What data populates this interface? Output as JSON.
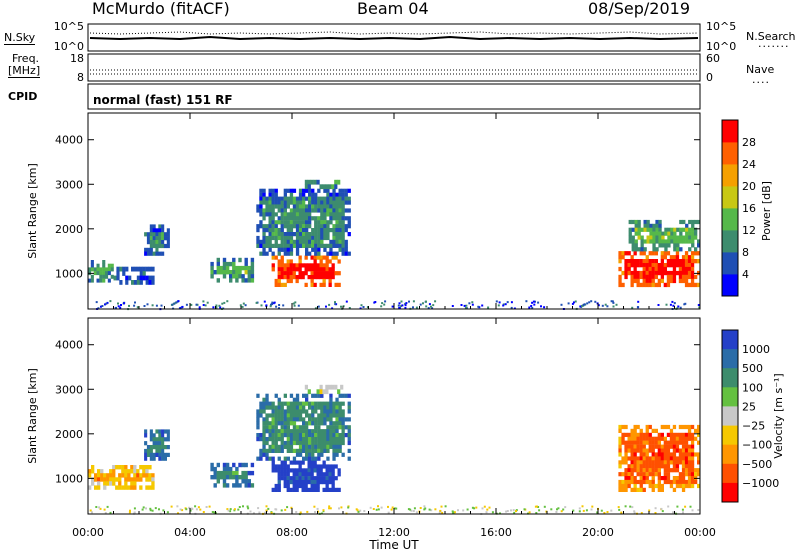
{
  "header": {
    "station": "McMurdo (fitACF)",
    "beam": "Beam 04",
    "date": "08/Sep/2019"
  },
  "noise_panel": {
    "left_label": "N.Sky",
    "right_label": "N.Search",
    "left_ticks": [
      "10^5",
      "10^0"
    ],
    "right_ticks": [
      "10^5",
      "10^0"
    ]
  },
  "freq_panel": {
    "left_label_line1": "Freq.",
    "left_label_line2": "[MHz]",
    "right_label": "Nave",
    "left_ticks": [
      "18",
      "8"
    ],
    "right_ticks": [
      "60",
      "0"
    ]
  },
  "cpid_panel": {
    "label": "CPID",
    "text": "normal (fast) 151 RF"
  },
  "chart_data": [
    {
      "type": "heatmap",
      "name": "power",
      "ylabel": "Slant Range [km]",
      "yticks": [
        "1000",
        "2000",
        "3000",
        "4000"
      ],
      "ylim": [
        200,
        4600
      ],
      "colorbar_label": "Power [dB]",
      "colorbar_ticks": [
        "4",
        "8",
        "12",
        "16",
        "20",
        "24",
        "28"
      ],
      "colors": [
        "#0000ff",
        "#1f4fb4",
        "#3d8c6e",
        "#55b84a",
        "#c8c814",
        "#f5a000",
        "#ff6000",
        "#ff0000"
      ],
      "regions": [
        {
          "t0": 0.0,
          "t1": 1.0,
          "r0": 800,
          "r1": 1300,
          "level": 3
        },
        {
          "t0": 1.0,
          "t1": 2.6,
          "r0": 750,
          "r1": 1150,
          "level": 2
        },
        {
          "t0": 2.2,
          "t1": 3.2,
          "r0": 1400,
          "r1": 2100,
          "level": 2
        },
        {
          "t0": 4.8,
          "t1": 6.5,
          "r0": 800,
          "r1": 1350,
          "level": 3
        },
        {
          "t0": 7.2,
          "t1": 9.9,
          "r0": 700,
          "r1": 1400,
          "level": 7
        },
        {
          "t0": 6.6,
          "t1": 10.3,
          "r0": 1400,
          "r1": 2900,
          "level": 2
        },
        {
          "t0": 8.5,
          "t1": 10.0,
          "r0": 2900,
          "r1": 3100,
          "level": 3
        },
        {
          "t0": 20.8,
          "t1": 24.0,
          "r0": 700,
          "r1": 1500,
          "level": 7
        },
        {
          "t0": 21.2,
          "t1": 24.0,
          "r0": 1500,
          "r1": 2200,
          "level": 3
        }
      ]
    },
    {
      "type": "heatmap",
      "name": "velocity",
      "ylabel": "Slant Range [km]",
      "yticks": [
        "1000",
        "2000",
        "3000",
        "4000"
      ],
      "ylim": [
        200,
        4600
      ],
      "xlabel": "Time UT",
      "xticks": [
        "00:00",
        "04:00",
        "08:00",
        "12:00",
        "16:00",
        "20:00",
        "00:00"
      ],
      "xlim": [
        0,
        24
      ],
      "colorbar_label": "Velocity [m s⁻¹]",
      "colorbar_ticks": [
        "1000",
        "500",
        "100",
        "25",
        "−25",
        "−100",
        "−500",
        "−1000"
      ],
      "colors": [
        "#2440c8",
        "#2a6ca8",
        "#3c8c6c",
        "#64c040",
        "#c8c8c8",
        "#f5c800",
        "#ff9600",
        "#ff5000",
        "#ff0000"
      ],
      "regions": [
        {
          "t0": 0.0,
          "t1": 2.6,
          "r0": 750,
          "r1": 1300,
          "level": 6
        },
        {
          "t0": 2.2,
          "t1": 3.2,
          "r0": 1400,
          "r1": 2100,
          "level": 2
        },
        {
          "t0": 4.8,
          "t1": 6.5,
          "r0": 800,
          "r1": 1350,
          "level": 2
        },
        {
          "t0": 7.2,
          "t1": 9.9,
          "r0": 700,
          "r1": 1400,
          "level": 0
        },
        {
          "t0": 6.6,
          "t1": 10.3,
          "r0": 1400,
          "r1": 2900,
          "level": 2
        },
        {
          "t0": 8.5,
          "t1": 10.0,
          "r0": 2900,
          "r1": 3100,
          "level": 5
        },
        {
          "t0": 20.8,
          "t1": 24.0,
          "r0": 700,
          "r1": 2200,
          "level": 7
        }
      ]
    }
  ]
}
